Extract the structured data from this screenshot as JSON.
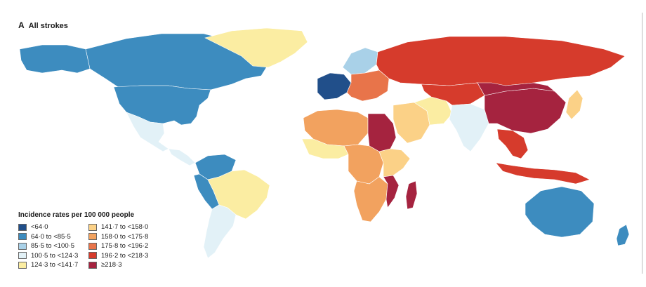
{
  "panel": {
    "letter": "A",
    "title": "All strokes"
  },
  "legend": {
    "title": "Incidence rates per 100 000 people",
    "items": [
      {
        "label": "<64·0",
        "color": "#214f8a"
      },
      {
        "label": "64·0 to <85·5",
        "color": "#3d8cbf"
      },
      {
        "label": "85·5 to <100·5",
        "color": "#a9d1e8"
      },
      {
        "label": "100·5 to <124·3",
        "color": "#e2f1f7"
      },
      {
        "label": "124·3 to <141·7",
        "color": "#fbeda2"
      },
      {
        "label": "141·7 to <158·0",
        "color": "#fbd187"
      },
      {
        "label": "158·0 to <175·8",
        "color": "#f2a25f"
      },
      {
        "label": "175·8 to <196·2",
        "color": "#e8744a"
      },
      {
        "label": "196·2 to <218·3",
        "color": "#d63b2c"
      },
      {
        "label": "≥218·3",
        "color": "#a5233f"
      }
    ]
  },
  "regions": [
    {
      "name": "canada",
      "category": 1
    },
    {
      "name": "alaska",
      "category": 1
    },
    {
      "name": "greenland",
      "category": 4
    },
    {
      "name": "usa",
      "category": 1
    },
    {
      "name": "mexico",
      "category": 3
    },
    {
      "name": "central-america",
      "category": 3
    },
    {
      "name": "colombia-venezuela",
      "category": 1
    },
    {
      "name": "peru-ecuador",
      "category": 1
    },
    {
      "name": "brazil",
      "category": 4
    },
    {
      "name": "southern-cone",
      "category": 3
    },
    {
      "name": "western-europe",
      "category": 0
    },
    {
      "name": "scandinavia",
      "category": 2
    },
    {
      "name": "eastern-europe",
      "category": 7
    },
    {
      "name": "russia",
      "category": 8
    },
    {
      "name": "north-africa",
      "category": 6
    },
    {
      "name": "egypt-sudan",
      "category": 9
    },
    {
      "name": "west-africa",
      "category": 4
    },
    {
      "name": "central-africa",
      "category": 6
    },
    {
      "name": "east-africa",
      "category": 5
    },
    {
      "name": "southern-africa",
      "category": 6
    },
    {
      "name": "mozambique",
      "category": 9
    },
    {
      "name": "madagascar",
      "category": 9
    },
    {
      "name": "arabia",
      "category": 5
    },
    {
      "name": "iran",
      "category": 4
    },
    {
      "name": "central-asia",
      "category": 8
    },
    {
      "name": "india",
      "category": 3
    },
    {
      "name": "china",
      "category": 9
    },
    {
      "name": "mongolia",
      "category": 9
    },
    {
      "name": "southeast-asia",
      "category": 8
    },
    {
      "name": "indonesia",
      "category": 8
    },
    {
      "name": "japan-korea",
      "category": 5
    },
    {
      "name": "australia",
      "category": 1
    },
    {
      "name": "new-zealand",
      "category": 1
    }
  ]
}
